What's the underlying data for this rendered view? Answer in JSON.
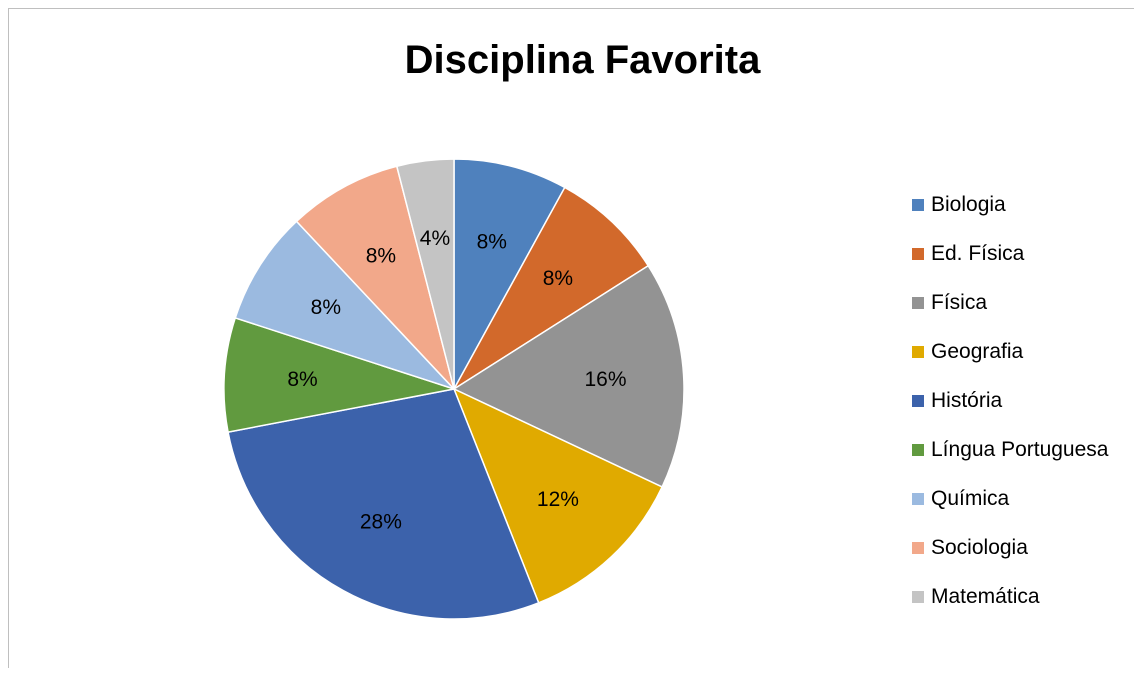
{
  "chart_data": {
    "type": "pie",
    "title": "Disciplina Favorita",
    "legend_position": "right",
    "slices": [
      {
        "label": "Biologia",
        "value": 8,
        "value_label": "8%",
        "color": "#4f81bd"
      },
      {
        "label": "Ed. Física",
        "value": 8,
        "value_label": "8%",
        "color": "#d2692b"
      },
      {
        "label": "Física",
        "value": 16,
        "value_label": "16%",
        "color": "#939393"
      },
      {
        "label": "Geografia",
        "value": 12,
        "value_label": "12%",
        "color": "#e0aa00"
      },
      {
        "label": "História",
        "value": 28,
        "value_label": "28%",
        "color": "#3c62ab"
      },
      {
        "label": "Língua Portuguesa",
        "value": 8,
        "value_label": "8%",
        "color": "#619a3f"
      },
      {
        "label": "Química",
        "value": 8,
        "value_label": "8%",
        "color": "#9bbae0"
      },
      {
        "label": "Sociologia",
        "value": 8,
        "value_label": "8%",
        "color": "#f2a88a"
      },
      {
        "label": "Matemática",
        "value": 4,
        "value_label": "4%",
        "color": "#c4c4c4"
      }
    ]
  }
}
